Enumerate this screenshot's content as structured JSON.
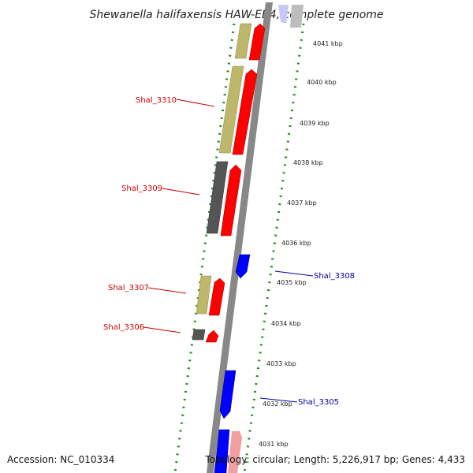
{
  "title": "Shewanella halifaxensis HAW-EB4, complete genome",
  "accession_text": "Accession: NC_010334",
  "summary_text": "Topology: circular; Length: 5,226,917 bp; Genes: 4,433",
  "colors": {
    "forward_gene": "#ff0000",
    "reverse_gene": "#0000ff",
    "khaki": "#bdb76b",
    "dark_gray": "#555555",
    "backbone": "#888888",
    "tick_green": "#1a8a1a",
    "left_label": "#cc0000",
    "right_label": "#0000aa"
  },
  "ticks": [
    {
      "label": "4041 kbp"
    },
    {
      "label": "4040 kbp"
    },
    {
      "label": "4039 kbp"
    },
    {
      "label": "4038 kbp"
    },
    {
      "label": "4037 kbp"
    },
    {
      "label": "4036 kbp"
    },
    {
      "label": "4035 kbp"
    },
    {
      "label": "4034 kbp"
    },
    {
      "label": "4033 kbp"
    },
    {
      "label": "4032 kbp"
    },
    {
      "label": "4031 kbp"
    }
  ],
  "gene_labels": {
    "left": [
      {
        "text": "Shal_3310"
      },
      {
        "text": "Shal_3309"
      },
      {
        "text": "Shal_3307"
      },
      {
        "text": "Shal_3306"
      }
    ],
    "right": [
      {
        "text": "Shal_3308"
      },
      {
        "text": "Shal_3305"
      }
    ]
  }
}
